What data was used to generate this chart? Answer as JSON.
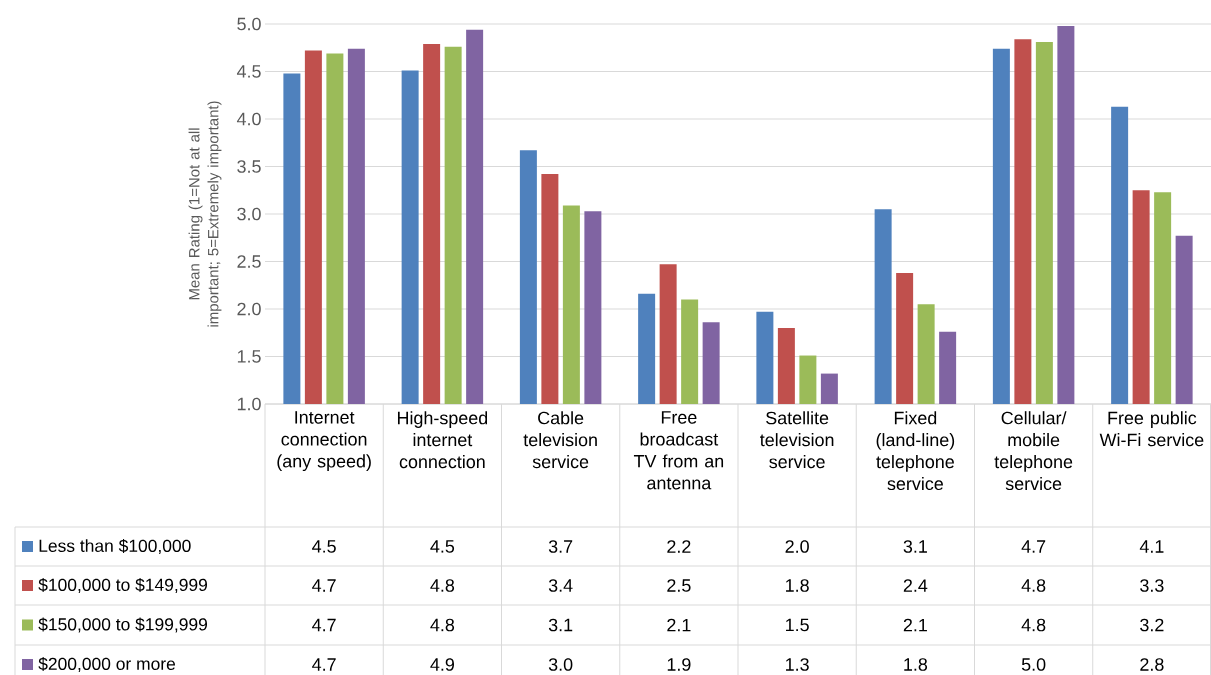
{
  "chart_data": {
    "type": "bar",
    "ylabel": "Mean Rating (1=Not at all important; 5=Extremely important)",
    "categories": [
      "Internet connection (any speed)",
      "High-speed internet connection",
      "Cable television service",
      "Free broadcast TV from an antenna",
      "Satellite television service",
      "Fixed (land-line) telephone service",
      "Cellular/ mobile telephone service",
      "Free public Wi-Fi service"
    ],
    "series": [
      {
        "name": "Less than $100,000",
        "color": "#4f81bd",
        "values": [
          4.48,
          4.51,
          3.67,
          2.16,
          1.97,
          3.05,
          4.74,
          4.13
        ],
        "value_labels": [
          "4.5",
          "4.5",
          "3.7",
          "2.2",
          "2.0",
          "3.1",
          "4.7",
          "4.1"
        ]
      },
      {
        "name": "$100,000 to $149,999",
        "color": "#c0504d",
        "values": [
          4.72,
          4.79,
          3.42,
          2.47,
          1.8,
          2.38,
          4.84,
          3.25
        ],
        "value_labels": [
          "4.7",
          "4.8",
          "3.4",
          "2.5",
          "1.8",
          "2.4",
          "4.8",
          "3.3"
        ]
      },
      {
        "name": "$150,000 to $199,999",
        "color": "#9bbb59",
        "values": [
          4.69,
          4.76,
          3.09,
          2.1,
          1.51,
          2.05,
          4.81,
          3.23
        ],
        "value_labels": [
          "4.7",
          "4.8",
          "3.1",
          "2.1",
          "1.5",
          "2.1",
          "4.8",
          "3.2"
        ]
      },
      {
        "name": "$200,000 or more",
        "color": "#8064a2",
        "values": [
          4.74,
          4.94,
          3.03,
          1.86,
          1.32,
          1.76,
          4.98,
          2.77
        ],
        "value_labels": [
          "4.7",
          "4.9",
          "3.0",
          "1.9",
          "1.3",
          "1.8",
          "5.0",
          "2.8"
        ]
      }
    ],
    "ylim": [
      1,
      5
    ],
    "yticks": [
      {
        "value": 1,
        "label": "1.0"
      },
      {
        "value": 1.5,
        "label": "1.5"
      },
      {
        "value": 2,
        "label": "2.0"
      },
      {
        "value": 2.5,
        "label": "2.5"
      },
      {
        "value": 3,
        "label": "3.0"
      },
      {
        "value": 3.5,
        "label": "3.5"
      },
      {
        "value": 4,
        "label": "4.0"
      },
      {
        "value": 4.5,
        "label": "4.5"
      },
      {
        "value": 5,
        "label": "5.0"
      }
    ],
    "grid": "y",
    "legend": "bottom"
  }
}
